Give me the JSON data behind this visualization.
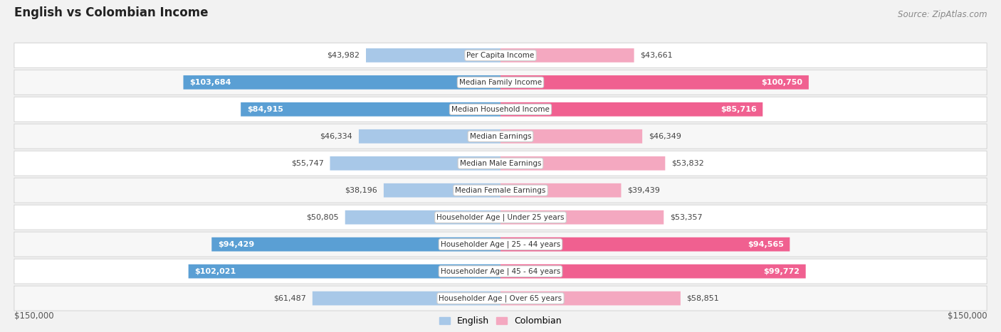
{
  "title": "English vs Colombian Income",
  "source": "Source: ZipAtlas.com",
  "categories": [
    "Per Capita Income",
    "Median Family Income",
    "Median Household Income",
    "Median Earnings",
    "Median Male Earnings",
    "Median Female Earnings",
    "Householder Age | Under 25 years",
    "Householder Age | 25 - 44 years",
    "Householder Age | 45 - 64 years",
    "Householder Age | Over 65 years"
  ],
  "english_values": [
    43982,
    103684,
    84915,
    46334,
    55747,
    38196,
    50805,
    94429,
    102021,
    61487
  ],
  "colombian_values": [
    43661,
    100750,
    85716,
    46349,
    53832,
    39439,
    53357,
    94565,
    99772,
    58851
  ],
  "english_labels": [
    "$43,982",
    "$103,684",
    "$84,915",
    "$46,334",
    "$55,747",
    "$38,196",
    "$50,805",
    "$94,429",
    "$102,021",
    "$61,487"
  ],
  "colombian_labels": [
    "$43,661",
    "$100,750",
    "$85,716",
    "$46,349",
    "$53,832",
    "$39,439",
    "$53,357",
    "$94,565",
    "$99,772",
    "$58,851"
  ],
  "english_color_light": "#a8c8e8",
  "english_color_dark": "#5a9fd4",
  "colombian_color_light": "#f4a8c0",
  "colombian_color_dark": "#f06090",
  "label_inside_threshold": 80000,
  "max_value": 150000,
  "fig_bg": "#f2f2f2",
  "row_bg_even": "#ffffff",
  "row_bg_odd": "#f7f7f7",
  "row_border": "#d8d8d8"
}
